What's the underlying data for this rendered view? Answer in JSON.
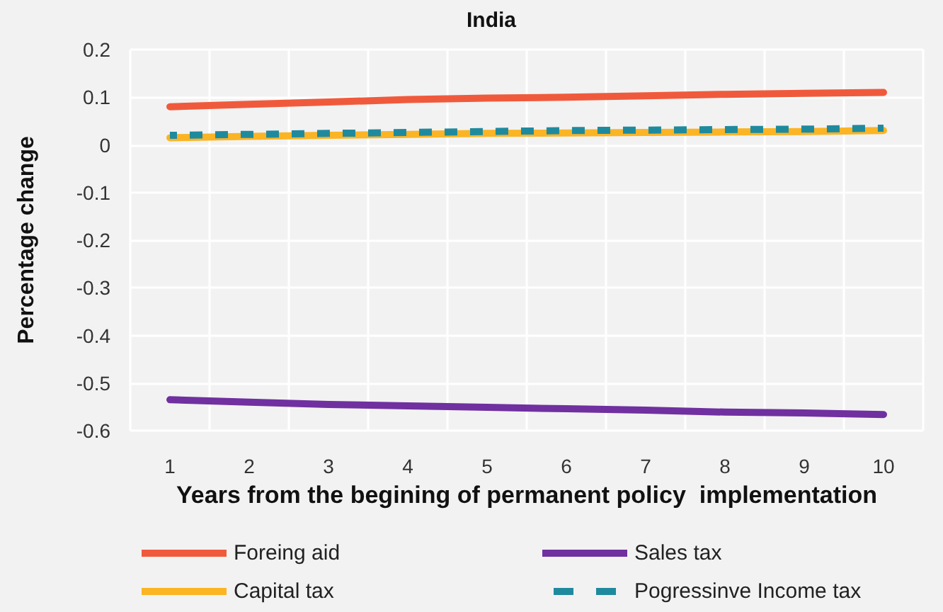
{
  "chart_data": {
    "type": "line",
    "title": "India",
    "xlabel": "Years from the begining of permanent policy  implementation",
    "ylabel": "Percentage change",
    "categories": [
      "1",
      "2",
      "3",
      "4",
      "5",
      "6",
      "7",
      "8",
      "9",
      "10"
    ],
    "series": [
      {
        "name": "Foreing aid",
        "color": "#f05a3c",
        "values": [
          0.08,
          0.085,
          0.09,
          0.095,
          0.098,
          0.1,
          0.103,
          0.106,
          0.108,
          0.11
        ]
      },
      {
        "name": "Capital tax",
        "color": "#fbb424",
        "values": [
          0.015,
          0.018,
          0.02,
          0.022,
          0.024,
          0.025,
          0.026,
          0.027,
          0.028,
          0.03
        ]
      },
      {
        "name": "Sales tax",
        "color": "#7030a0",
        "values": [
          -0.535,
          -0.54,
          -0.545,
          -0.548,
          -0.551,
          -0.554,
          -0.557,
          -0.561,
          -0.563,
          -0.566
        ]
      },
      {
        "name": "Pogressinve Income tax",
        "color": "#1f8a9e",
        "values": [
          0.02,
          0.022,
          0.024,
          0.026,
          0.028,
          0.03,
          0.031,
          0.032,
          0.033,
          0.035
        ],
        "line_style": "dashed"
      }
    ],
    "ylim": [
      -0.6,
      0.2
    ],
    "yticks": [
      -0.6,
      -0.5,
      -0.4,
      -0.3,
      -0.2,
      -0.1,
      0,
      0.1,
      0.2
    ],
    "grid": true,
    "legend": "bottom",
    "marker": "none",
    "line_style": "solid"
  }
}
